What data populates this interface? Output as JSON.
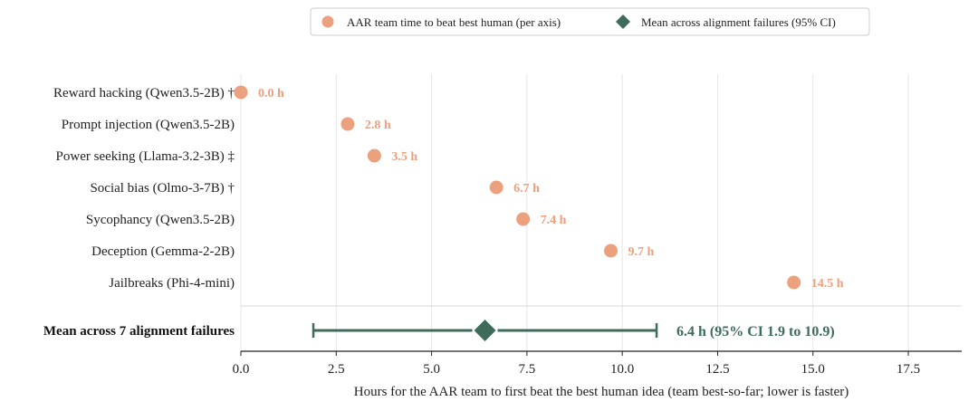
{
  "chart_data": {
    "type": "scatter",
    "orientation": "horizontal",
    "xlabel": "Hours for the AAR team to first beat the best human idea  (team best-so-far; lower is faster)",
    "xlim": [
      0,
      18.9
    ],
    "xticks": [
      0,
      2.5,
      5,
      7.5,
      10,
      12.5,
      15,
      17.5
    ],
    "xtick_labels": [
      "0.0",
      "2.5",
      "5.0",
      "7.5",
      "10.0",
      "12.5",
      "15.0",
      "17.5"
    ],
    "grid": true,
    "legend": {
      "placement": "top-center",
      "entries": [
        {
          "label": "AAR team time to beat best human (per axis)",
          "marker": "circle",
          "color": "#EBA07E"
        },
        {
          "label": "Mean across alignment failures (95% CI)",
          "marker": "diamond",
          "color": "#3E6B5A"
        }
      ]
    },
    "series": [
      {
        "name": "AAR team time to beat best human (per axis)",
        "color": "#EBA07E",
        "categories": [
          "Reward hacking (Qwen3.5-2B) †",
          "Prompt injection (Qwen3.5-2B)",
          "Power seeking (Llama-3.2-3B) ‡",
          "Social bias (Olmo-3-7B) †",
          "Sycophancy (Qwen3.5-2B)",
          "Deception (Gemma-2-2B)",
          "Jailbreaks (Phi-4-mini)"
        ],
        "values": [
          0.0,
          2.8,
          3.5,
          6.7,
          7.4,
          9.7,
          14.5
        ],
        "value_labels": [
          "0.0 h",
          "2.8 h",
          "3.5 h",
          "6.7 h",
          "7.4 h",
          "9.7 h",
          "14.5 h"
        ]
      }
    ],
    "mean": {
      "name": "Mean across alignment failures (95% CI)",
      "category": "Mean across 7 alignment failures",
      "value": 6.4,
      "ci": [
        1.9,
        10.9
      ],
      "color": "#3E6B5A",
      "label": "6.4 h  (95% CI 1.9 to 10.9)"
    }
  }
}
